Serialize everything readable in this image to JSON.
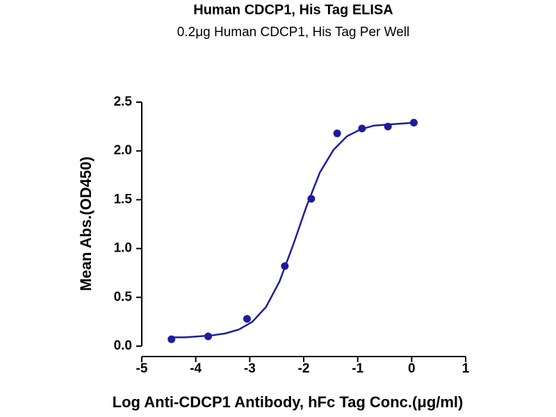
{
  "chart_data": {
    "type": "scatter",
    "title": "Human CDCP1, His Tag ELISA",
    "subtitle": "0.2μg Human CDCP1, His Tag Per Well",
    "x_label": "Log Anti-CDCP1 Antibody, hFc Tag Conc.(μg/ml)",
    "y_label": "Mean Abs.(OD450)",
    "xlim": [
      -5,
      1
    ],
    "xticks": [
      -5,
      -4,
      -3,
      -2,
      -1,
      0,
      1
    ],
    "ylim": [
      0,
      2.5
    ],
    "yticks": [
      {
        "value": 0,
        "label": "0.0"
      },
      {
        "value": 0.5,
        "label": "0.5"
      },
      {
        "value": 1,
        "label": "1.0"
      },
      {
        "value": 1.5,
        "label": "1.5"
      },
      {
        "value": 2,
        "label": "2.0"
      },
      {
        "value": 2.5,
        "label": "2.5"
      }
    ],
    "series": [
      {
        "mode": "markers",
        "color": "#1c1c9e",
        "x": [
          -4.45,
          -3.77,
          -3.05,
          -2.35,
          -1.86,
          -1.38,
          -0.92,
          -0.44,
          0.04
        ],
        "values": [
          0.07,
          0.1,
          0.28,
          0.82,
          1.51,
          2.18,
          2.23,
          2.25,
          2.29
        ]
      },
      {
        "mode": "line",
        "color": "#1c1c9e",
        "x": [
          -4.45,
          -4.2,
          -3.95,
          -3.7,
          -3.45,
          -3.2,
          -2.95,
          -2.7,
          -2.45,
          -2.2,
          -1.95,
          -1.7,
          -1.45,
          -1.2,
          -0.95,
          -0.7,
          -0.45,
          -0.2,
          0.05
        ],
        "values": [
          0.09,
          0.09,
          0.1,
          0.11,
          0.13,
          0.17,
          0.25,
          0.4,
          0.66,
          1.03,
          1.43,
          1.78,
          2.01,
          2.15,
          2.22,
          2.26,
          2.27,
          2.28,
          2.29
        ]
      }
    ]
  }
}
